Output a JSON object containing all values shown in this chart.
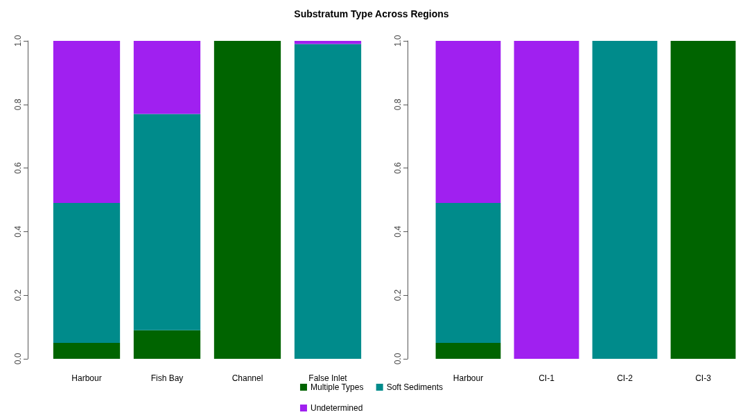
{
  "chart_data": [
    {
      "type": "bar",
      "title": "Substratum Type Across Regions",
      "categories": [
        "Harbour",
        "Fish Bay",
        "Channel",
        "False Inlet"
      ],
      "stacked": true,
      "legend": "bottom",
      "grid": false,
      "ylim": [
        0,
        1
      ],
      "yticks": [
        {
          "value": 0,
          "label": "0.0"
        },
        {
          "value": 0.2,
          "label": "0.2"
        },
        {
          "value": 0.4,
          "label": "0.4"
        },
        {
          "value": 0.6,
          "label": "0.6"
        },
        {
          "value": 0.8,
          "label": "0.8"
        },
        {
          "value": 1,
          "label": "1.0"
        }
      ],
      "series": [
        {
          "name": "Multiple Types",
          "color": "#006400",
          "values": [
            0.05,
            0.09,
            1,
            0
          ]
        },
        {
          "name": "Soft Sediments",
          "color": "#008b8b",
          "values": [
            0.44,
            0.68,
            0,
            0.99
          ]
        },
        {
          "name": "Undetermined",
          "color": "#a020f0",
          "values": [
            0.51,
            0.23,
            0,
            0.01
          ]
        }
      ]
    },
    {
      "type": "bar",
      "categories": [
        "Harbour",
        "CI-1",
        "CI-2",
        "CI-3"
      ],
      "stacked": true,
      "grid": false,
      "ylim": [
        0,
        1
      ],
      "yticks": [
        {
          "value": 0,
          "label": "0.0"
        },
        {
          "value": 0.2,
          "label": "0.2"
        },
        {
          "value": 0.4,
          "label": "0.4"
        },
        {
          "value": 0.6,
          "label": "0.6"
        },
        {
          "value": 0.8,
          "label": "0.8"
        },
        {
          "value": 1,
          "label": "1.0"
        }
      ],
      "series": [
        {
          "color": "#006400",
          "values": [
            0.05,
            0,
            0,
            1
          ]
        },
        {
          "color": "#008b8b",
          "values": [
            0.44,
            0,
            1,
            0
          ]
        },
        {
          "color": "#a020f0",
          "values": [
            0.51,
            1,
            0,
            0
          ]
        }
      ]
    }
  ]
}
